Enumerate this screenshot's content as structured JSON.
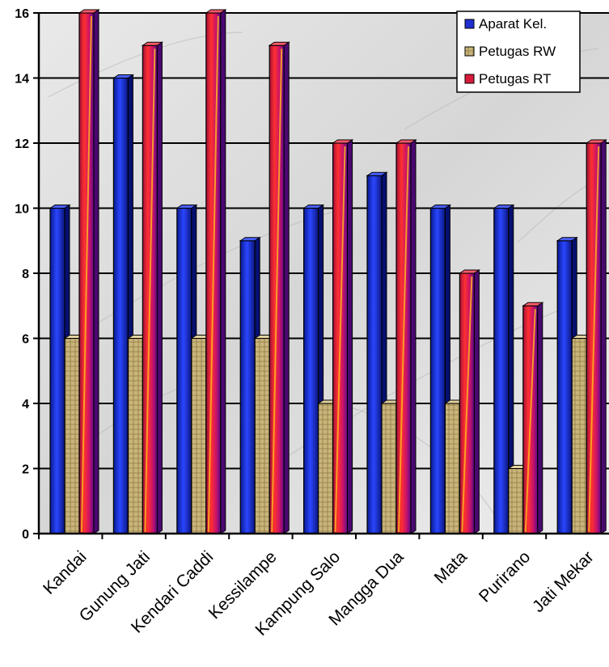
{
  "chart_data": {
    "type": "bar",
    "title": "",
    "xlabel": "",
    "ylabel": "",
    "ylim": [
      0,
      16
    ],
    "yticks": [
      0,
      2,
      4,
      6,
      8,
      10,
      12,
      14,
      16
    ],
    "grid": true,
    "legend_position": "top-right",
    "categories": [
      "Kandai",
      "Gunung Jati",
      "Kendari Caddi",
      "Kessilampe",
      "Kampung Salo",
      "Mangga Dua",
      "Mata",
      "Purirano",
      "Jati Mekar"
    ],
    "series": [
      {
        "name": "Aparat Kel.",
        "color": "#1f2fd0",
        "values": [
          10,
          14,
          10,
          9,
          10,
          11,
          10,
          10,
          9
        ]
      },
      {
        "name": "Petugas RW",
        "color": "#c9b47a",
        "values": [
          6,
          6,
          6,
          6,
          4,
          4,
          4,
          2,
          6
        ]
      },
      {
        "name": "Petugas RT",
        "color": "#d81b3a",
        "values": [
          16,
          15,
          16,
          15,
          12,
          12,
          8,
          7,
          12
        ]
      }
    ]
  }
}
